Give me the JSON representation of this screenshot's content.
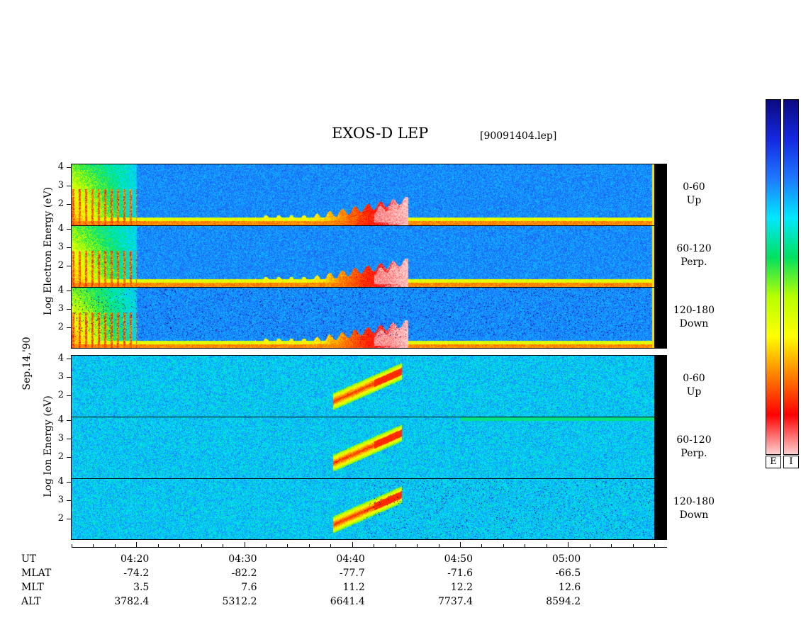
{
  "chart_data": {
    "type": "heatmap",
    "title": "EXOS-D LEP",
    "file": "[90091404.lep]",
    "date_label": "Sep.14,'90",
    "electron": {
      "ylabel_parts": [
        "Log",
        "Electron",
        "Energy",
        "(eV)"
      ],
      "panels": [
        {
          "range": "0-60",
          "dir": "Up"
        },
        {
          "range": "60-120",
          "dir": "Perp."
        },
        {
          "range": "120-180",
          "dir": "Down"
        }
      ]
    },
    "ion": {
      "ylabel_parts": [
        "Log",
        "Ion",
        "Energy",
        "(eV)"
      ],
      "panels": [
        {
          "range": "0-60",
          "dir": "Up"
        },
        {
          "range": "60-120",
          "dir": "Perp."
        },
        {
          "range": "120-180",
          "dir": "Down"
        }
      ]
    },
    "y_ticks": [
      "4",
      "3",
      "2"
    ],
    "ylim": [
      1,
      4
    ],
    "x_rows": [
      {
        "label": "UT",
        "values": [
          "04:20",
          "04:30",
          "04:40",
          "04:50",
          "05:00"
        ]
      },
      {
        "label": "MLAT",
        "values": [
          "-74.2",
          "-82.2",
          "-77.7",
          "-71.6",
          "-66.5"
        ]
      },
      {
        "label": "MLT",
        "values": [
          "3.5",
          "7.6",
          "11.2",
          "12.2",
          "12.6"
        ]
      },
      {
        "label": "ALT",
        "values": [
          "3782.4",
          "5312.2",
          "6641.4",
          "7737.4",
          "8594.2"
        ]
      }
    ],
    "x_range_minutes": [
      14.0,
      68.0
    ],
    "colorbar_labels": [
      "E",
      "I"
    ],
    "colormap": [
      "#0a0a80",
      "#1428e0",
      "#1e78ff",
      "#00e8ff",
      "#00e060",
      "#b8ff00",
      "#ffff00",
      "#ff8000",
      "#ff0000",
      "#ffd0d0"
    ]
  }
}
